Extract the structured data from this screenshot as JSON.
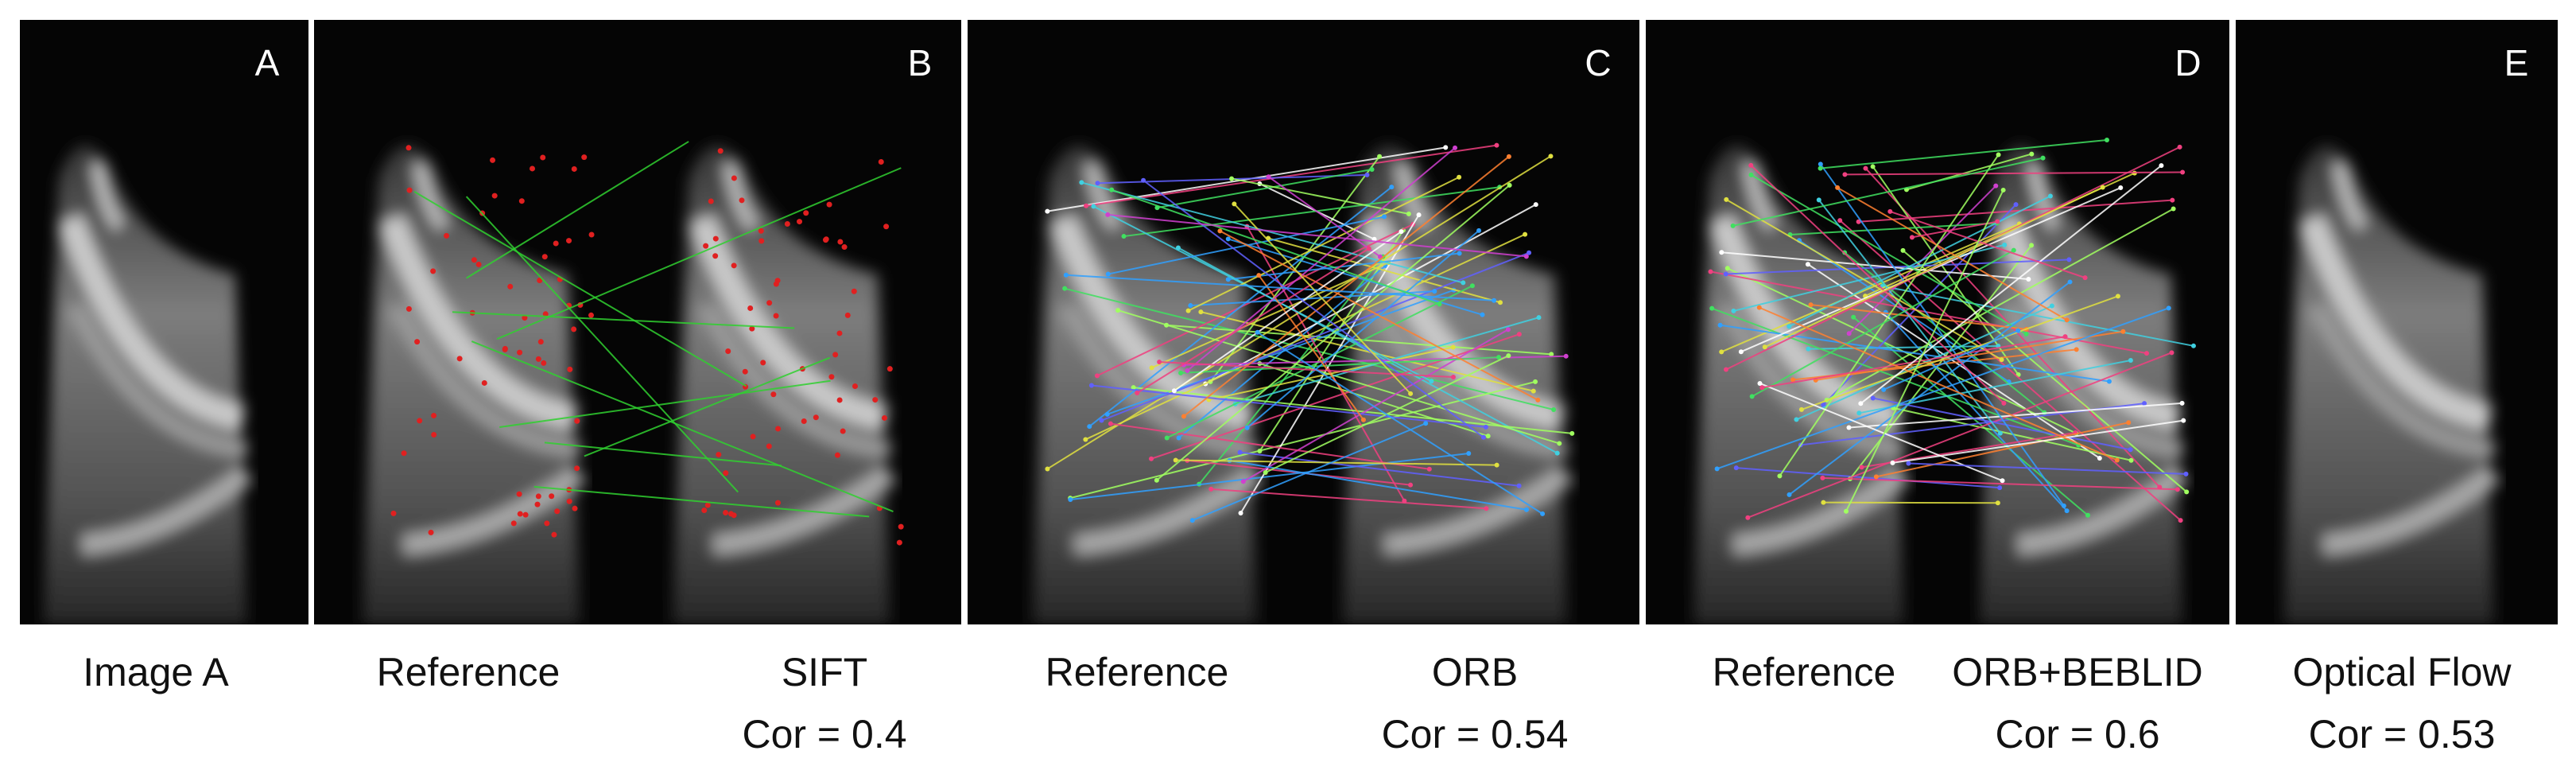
{
  "panels": [
    {
      "letter": "A",
      "caption": [
        "Image A"
      ]
    },
    {
      "letter": "B",
      "reference": "Reference",
      "caption": [
        "SIFT",
        "Cor = 0.4"
      ]
    },
    {
      "letter": "C",
      "reference": "Reference",
      "caption": [
        "ORB",
        "Cor = 0.54"
      ]
    },
    {
      "letter": "D",
      "reference": "Reference",
      "caption": [
        "ORB+BEBLID",
        "Cor = 0.6"
      ]
    },
    {
      "letter": "E",
      "caption": [
        "Optical Flow",
        "Cor = 0.53"
      ]
    }
  ]
}
